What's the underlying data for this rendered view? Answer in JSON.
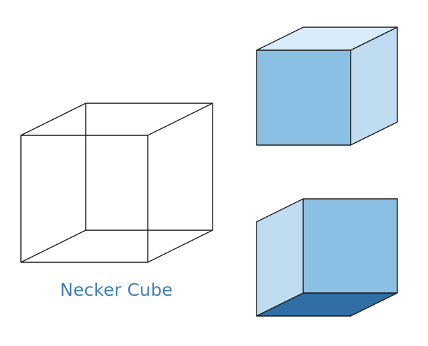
{
  "caption": "Necker Cube",
  "colors": {
    "background": "#ffffff",
    "stroke": "#1a1a1a",
    "caption": "#3f7fb8",
    "face_front": "#8bbfe3",
    "face_light": "#c0dcf0",
    "face_top": "#d9ecf9",
    "face_dark": "#2f6fa3"
  },
  "figures": [
    {
      "name": "wireframe-necker-cube",
      "style": "wireframe"
    },
    {
      "name": "cube-viewed-from-above",
      "style": "solid"
    },
    {
      "name": "cube-viewed-from-below",
      "style": "solid"
    }
  ]
}
